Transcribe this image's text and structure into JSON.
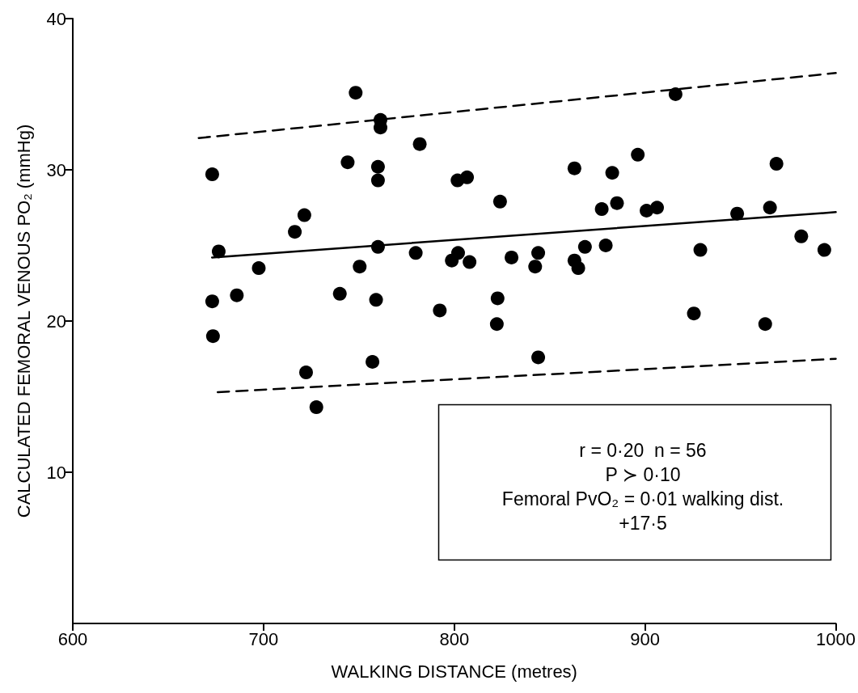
{
  "chart_data": {
    "type": "scatter",
    "xlabel": "WALKING DISTANCE (metres)",
    "ylabel": "CALCULATED FEMORAL VENOUS PO₂ (mmHg)",
    "xlim": [
      600,
      1000
    ],
    "xticks": [
      600,
      700,
      800,
      900,
      1000
    ],
    "ylim": [
      0,
      40
    ],
    "yticks": [
      10,
      20,
      30,
      40
    ],
    "grid": false,
    "annotations": [
      "r = 0·20  n = 56",
      "P ≻ 0·10",
      "Femoral PvO₂ = 0·01 walking dist.",
      "+17·5"
    ],
    "series": [
      {
        "color": "#000000",
        "marker": "circle",
        "x": [
          748.3,
          761.3,
          761.3,
          781.9,
          673.1,
          744.1,
          760,
          760,
          801.7,
          806.7,
          824,
          721.4,
          716.4,
          676.5,
          760,
          779.8,
          802,
          798.7,
          808,
          830,
          697.5,
          750.4,
          673.1,
          686,
          740,
          759,
          792.4,
          822.7,
          822.3,
          673.5,
          757.1,
          722.3,
          727.7,
          916,
          896.2,
          863,
          882.8,
          968.9,
          877.3,
          885.3,
          900.8,
          906.3,
          948.3,
          965.5,
          981.9,
          994,
          929,
          844,
          842.4,
          868.5,
          879.4,
          863,
          865,
          925.6,
          963,
          844
        ],
        "values": [
          35.1,
          33.3,
          32.8,
          31.7,
          29.7,
          30.5,
          30.2,
          29.3,
          29.3,
          29.5,
          27.9,
          27.0,
          25.9,
          24.6,
          24.9,
          24.5,
          24.5,
          24.0,
          23.9,
          24.2,
          23.5,
          23.6,
          21.3,
          21.7,
          21.8,
          21.4,
          20.7,
          21.5,
          19.8,
          19.0,
          17.3,
          16.6,
          14.3,
          35.0,
          31.0,
          30.1,
          29.8,
          30.4,
          27.4,
          27.8,
          27.3,
          27.5,
          27.1,
          27.5,
          25.6,
          24.7,
          24.7,
          24.5,
          23.6,
          24.9,
          25.0,
          24.0,
          23.5,
          20.5,
          19.8,
          17.6
        ]
      },
      {
        "type": "line",
        "color": "#000000",
        "marker": "none",
        "line_style": "solid",
        "x": [
          673,
          1000
        ],
        "values": [
          24.2,
          27.2
        ]
      },
      {
        "type": "line",
        "color": "#000000",
        "marker": "none",
        "line_style": "dashed",
        "x": [
          666,
          1000
        ],
        "values": [
          32.1,
          36.4
        ]
      },
      {
        "type": "line",
        "color": "#000000",
        "marker": "none",
        "line_style": "dashed",
        "x": [
          676,
          1000
        ],
        "values": [
          15.3,
          17.5
        ]
      }
    ]
  }
}
